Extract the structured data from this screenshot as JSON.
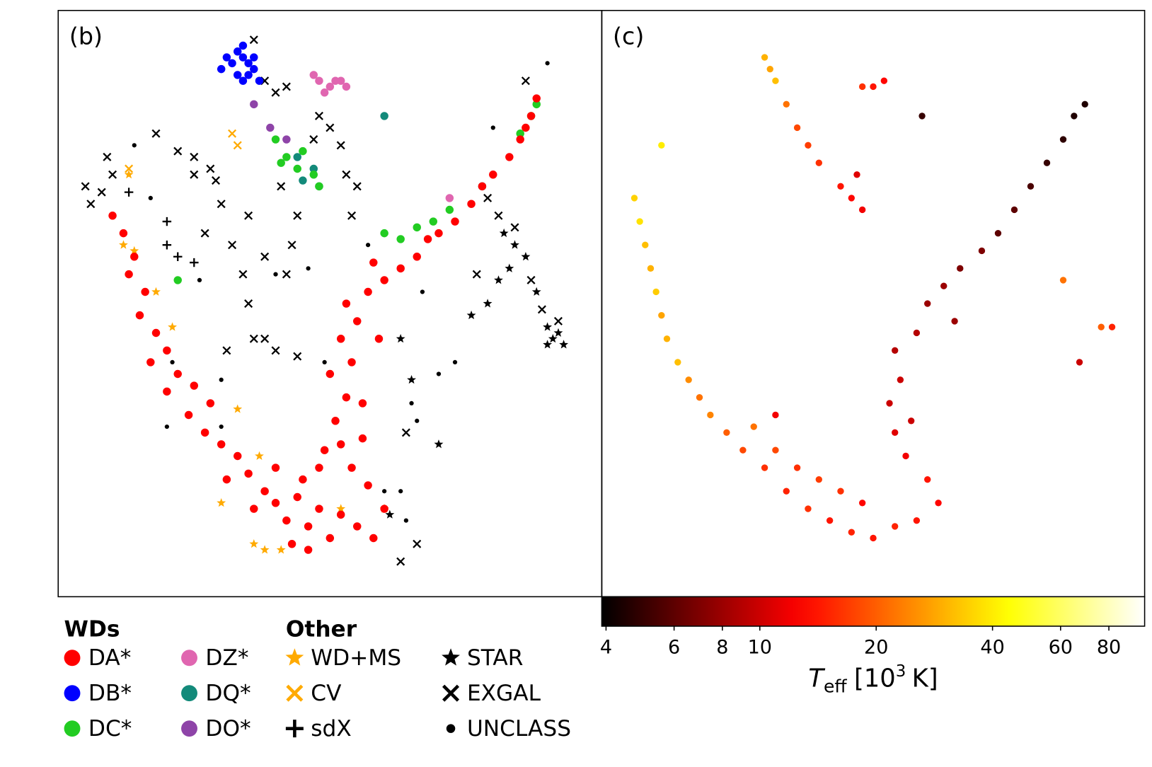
{
  "chart_data": [
    {
      "type": "scatter",
      "label": "(b)",
      "xlim": [
        0,
        100
      ],
      "ylim": [
        0,
        100
      ],
      "legend_groups": [
        "WDs",
        "Other"
      ],
      "series": [
        {
          "name": "DA*",
          "color": "#ff0000",
          "marker": "circle",
          "x": [
            10,
            12,
            14,
            13,
            16,
            15,
            18,
            20,
            17,
            22,
            20,
            25,
            24,
            28,
            27,
            30,
            33,
            31,
            35,
            38,
            36,
            40,
            42,
            44,
            46,
            48,
            50,
            52,
            55,
            58,
            60,
            57,
            54,
            52,
            51,
            53,
            50,
            54,
            52,
            55,
            53,
            57,
            60,
            58,
            63,
            66,
            68,
            70,
            73,
            76,
            78,
            80,
            83,
            85,
            87,
            88,
            86,
            45,
            40,
            48,
            46,
            43,
            49,
            56,
            56,
            59
          ],
          "y": [
            65,
            62,
            58,
            55,
            52,
            48,
            45,
            42,
            40,
            38,
            35,
            36,
            31,
            33,
            28,
            26,
            24,
            20,
            21,
            18,
            15,
            16,
            13,
            17,
            12,
            15,
            10,
            14,
            12,
            10,
            15,
            19,
            22,
            26,
            30,
            34,
            38,
            40,
            44,
            47,
            50,
            52,
            54,
            57,
            56,
            58,
            61,
            62,
            64,
            67,
            70,
            72,
            75,
            78,
            82,
            85,
            80,
            20,
            22,
            22,
            8,
            9,
            25,
            27,
            33,
            44
          ]
        },
        {
          "name": "DB*",
          "color": "#0000ff",
          "marker": "circle",
          "x": [
            33,
            34,
            35,
            32,
            34,
            36,
            33,
            35,
            31,
            34,
            36,
            30,
            37
          ],
          "y": [
            93,
            92,
            91,
            91,
            94,
            92,
            89,
            89,
            92,
            88,
            90,
            90,
            88
          ]
        },
        {
          "name": "DC*",
          "color": "#22cc22",
          "marker": "circle",
          "x": [
            40,
            42,
            44,
            45,
            47,
            41,
            48,
            60,
            63,
            66,
            69,
            72,
            85,
            87,
            88,
            22
          ],
          "y": [
            78,
            75,
            73,
            76,
            72,
            74,
            70,
            62,
            61,
            63,
            64,
            66,
            79,
            82,
            84,
            54
          ]
        },
        {
          "name": "DZ*",
          "color": "#e066b0",
          "marker": "circle",
          "x": [
            48,
            50,
            51,
            52,
            53,
            47,
            49,
            72
          ],
          "y": [
            88,
            87,
            88,
            88,
            87,
            89,
            86,
            68
          ]
        },
        {
          "name": "DQ*",
          "color": "#138a7a",
          "marker": "circle",
          "x": [
            45,
            47,
            48,
            60,
            78,
            44
          ],
          "y": [
            71,
            73,
            70,
            82,
            70,
            75
          ]
        },
        {
          "name": "DO*",
          "color": "#8e44a8",
          "marker": "circle",
          "x": [
            39,
            42,
            36
          ],
          "y": [
            80,
            78,
            84
          ]
        },
        {
          "name": "WD+MS",
          "color": "#ffaa00",
          "marker": "star",
          "x": [
            12,
            14,
            18,
            21,
            33,
            37,
            30,
            36,
            38,
            41,
            52,
            13,
            60
          ],
          "y": [
            60,
            59,
            52,
            46,
            32,
            24,
            16,
            9,
            8,
            8,
            15,
            72,
            15
          ]
        },
        {
          "name": "CV",
          "color": "#ffaa00",
          "marker": "x",
          "x": [
            32,
            33,
            13
          ],
          "y": [
            79,
            77,
            73
          ]
        },
        {
          "name": "sdX",
          "color": "#000000",
          "marker": "plus",
          "x": [
            20,
            22,
            25,
            13,
            20
          ],
          "y": [
            60,
            58,
            57,
            69,
            64
          ]
        },
        {
          "name": "STAR",
          "color": "#000000",
          "marker": "star",
          "x": [
            82,
            84,
            86,
            83,
            81,
            88,
            90,
            91,
            92,
            93,
            90,
            79,
            76,
            63,
            65,
            61,
            70
          ],
          "y": [
            62,
            60,
            58,
            56,
            54,
            52,
            46,
            44,
            45,
            43,
            43,
            50,
            48,
            44,
            37,
            14,
            26
          ]
        },
        {
          "name": "EXGAL",
          "color": "#000000",
          "marker": "x",
          "x": [
            9,
            10,
            5,
            6,
            8,
            18,
            22,
            25,
            29,
            30,
            27,
            35,
            34,
            35,
            36,
            38,
            40,
            42,
            43,
            44,
            41,
            47,
            48,
            50,
            52,
            53,
            55,
            54,
            38,
            40,
            42,
            36,
            86,
            81,
            84,
            87,
            92,
            64,
            63,
            66,
            25,
            28,
            38,
            32,
            31,
            44,
            89,
            77,
            79
          ],
          "y": [
            75,
            72,
            70,
            67,
            69,
            79,
            76,
            75,
            71,
            67,
            62,
            65,
            55,
            50,
            44,
            44,
            42,
            55,
            60,
            65,
            70,
            78,
            82,
            80,
            77,
            72,
            70,
            65,
            88,
            86,
            87,
            95,
            88,
            65,
            63,
            54,
            47,
            28,
            6,
            9,
            72,
            73,
            58,
            60,
            42,
            41,
            49,
            55,
            68
          ]
        },
        {
          "name": "UNCLASS",
          "color": "#000000",
          "marker": "dot",
          "x": [
            14,
            17,
            26,
            21,
            30,
            46,
            57,
            67,
            73,
            70,
            65,
            66,
            63,
            64,
            60,
            20,
            30,
            90,
            80,
            40,
            49
          ],
          "y": [
            77,
            68,
            54,
            40,
            37,
            56,
            60,
            52,
            40,
            38,
            33,
            30,
            18,
            13,
            18,
            29,
            29,
            91,
            80,
            55,
            40
          ]
        }
      ]
    },
    {
      "type": "colorscatter",
      "label": "(c)",
      "xlim": [
        0,
        100
      ],
      "ylim": [
        0,
        100
      ],
      "colormap": "hot",
      "clim": [
        3.9,
        99
      ],
      "log_color": true,
      "colorbar_ticks": [
        4,
        6,
        8,
        10,
        20,
        40,
        60,
        80
      ],
      "colorbar_label": {
        "symbol": "T",
        "subscript": "eff",
        "text": "[10",
        "superscript": "3",
        "unit": "K]"
      },
      "x": [
        6,
        7,
        8,
        9,
        10,
        11,
        12,
        14,
        16,
        18,
        20,
        23,
        26,
        30,
        34,
        38,
        42,
        46,
        50,
        54,
        58,
        62,
        60,
        56,
        54,
        53,
        55,
        54,
        58,
        60,
        63,
        66,
        70,
        73,
        76,
        79,
        82,
        85,
        87,
        89,
        48,
        44,
        40,
        36,
        32,
        28,
        57,
        65,
        30,
        31,
        32,
        34,
        36,
        38,
        40,
        44,
        46,
        48,
        47,
        48,
        50,
        52,
        59,
        11,
        88,
        92,
        94,
        85,
        32
      ],
      "y": [
        68,
        64,
        60,
        56,
        52,
        48,
        44,
        40,
        37,
        34,
        31,
        28,
        25,
        22,
        18,
        15,
        13,
        11,
        10,
        12,
        13,
        16,
        20,
        24,
        28,
        33,
        37,
        42,
        45,
        50,
        53,
        56,
        59,
        62,
        66,
        70,
        74,
        78,
        82,
        84,
        16,
        18,
        20,
        22,
        25,
        29,
        30,
        47,
        92,
        90,
        88,
        84,
        80,
        77,
        74,
        70,
        68,
        66,
        72,
        87,
        87,
        88,
        82,
        77,
        40,
        46,
        46,
        54,
        31
      ],
      "values": [
        35,
        38,
        32,
        30,
        34,
        28,
        30,
        32,
        25,
        22,
        24,
        20,
        18,
        16,
        15,
        16,
        14,
        15,
        14,
        15,
        14,
        13,
        14,
        12,
        11,
        10,
        10,
        9,
        9,
        8,
        8,
        7,
        7,
        6,
        6,
        5.5,
        5,
        4.8,
        4.5,
        4.5,
        13,
        16,
        17,
        16,
        18,
        22,
        10,
        8,
        30,
        28,
        32,
        22,
        18,
        17,
        16,
        14,
        13,
        12,
        11,
        16,
        14,
        13,
        5,
        40,
        10,
        20,
        15,
        22,
        12
      ]
    }
  ]
}
